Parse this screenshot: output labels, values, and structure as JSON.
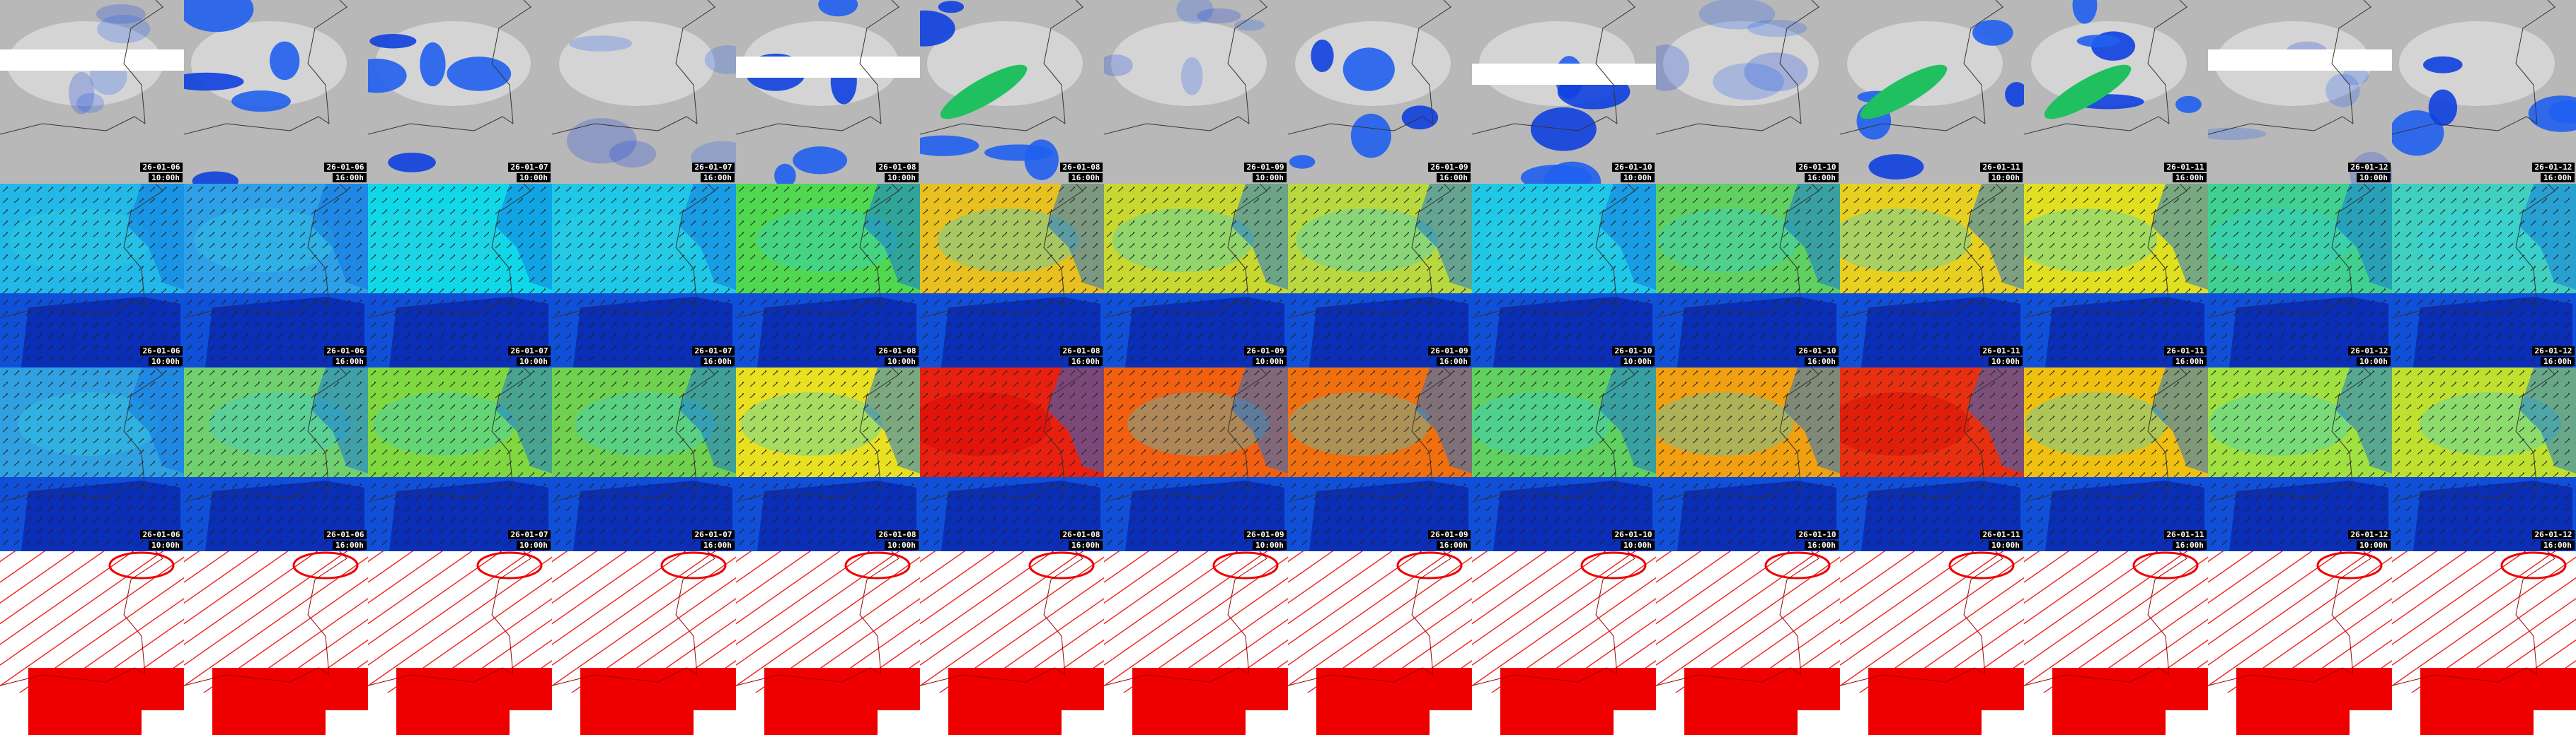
{
  "frames": [
    {
      "date": "26-01-06",
      "time": "10:00h"
    },
    {
      "date": "26-01-06",
      "time": "16:00h"
    },
    {
      "date": "26-01-07",
      "time": "10:00h"
    },
    {
      "date": "26-01-07",
      "time": "16:00h"
    },
    {
      "date": "26-01-08",
      "time": "10:00h"
    },
    {
      "date": "26-01-08",
      "time": "16:00h"
    },
    {
      "date": "26-01-09",
      "time": "10:00h"
    },
    {
      "date": "26-01-09",
      "time": "16:00h"
    },
    {
      "date": "26-01-10",
      "time": "10:00h"
    },
    {
      "date": "26-01-10",
      "time": "16:00h"
    },
    {
      "date": "26-01-11",
      "time": "10:00h"
    },
    {
      "date": "26-01-11",
      "time": "16:00h"
    },
    {
      "date": "26-01-12",
      "time": "10:00h"
    },
    {
      "date": "26-01-12",
      "time": "16:00h"
    }
  ]
}
